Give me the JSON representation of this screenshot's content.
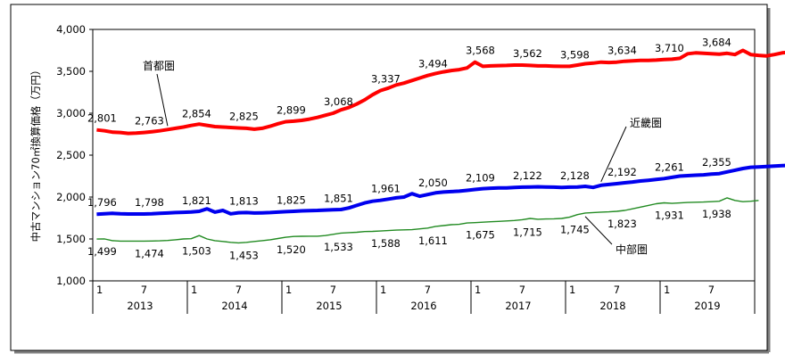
{
  "chart_data": {
    "type": "line",
    "ylabel": "中古マンション70㎡換算価格（万円）",
    "ylim": [
      1000,
      4000
    ],
    "yticks": [
      "1,000",
      "1,500",
      "2,000",
      "2,500",
      "3,000",
      "3,500",
      "4,000"
    ],
    "ytick_values": [
      1000,
      1500,
      2000,
      2500,
      3000,
      3500,
      4000
    ],
    "month_labels": [
      "1",
      "7"
    ],
    "years": [
      "2013",
      "2014",
      "2015",
      "2016",
      "2017",
      "2018",
      "2019"
    ],
    "grid": false,
    "series": [
      {
        "name": "首都圏",
        "color": "#ff0000",
        "values": [
          2801,
          2790,
          2775,
          2770,
          2760,
          2763,
          2770,
          2780,
          2790,
          2805,
          2820,
          2835,
          2854,
          2870,
          2855,
          2840,
          2835,
          2830,
          2825,
          2820,
          2810,
          2820,
          2845,
          2875,
          2899,
          2905,
          2915,
          2930,
          2950,
          2975,
          3000,
          3040,
          3068,
          3110,
          3160,
          3220,
          3270,
          3300,
          3337,
          3360,
          3390,
          3420,
          3450,
          3475,
          3494,
          3510,
          3520,
          3540,
          3610,
          3560,
          3565,
          3568,
          3570,
          3575,
          3575,
          3570,
          3565,
          3565,
          3562,
          3560,
          3560,
          3575,
          3590,
          3598,
          3610,
          3605,
          3610,
          3620,
          3625,
          3630,
          3630,
          3634,
          3640,
          3645,
          3655,
          3710,
          3720,
          3715,
          3710,
          3705,
          3715,
          3700,
          3750,
          3700,
          3690,
          3684,
          3700,
          3720,
          3730,
          3720,
          3705,
          3720,
          3750
        ],
        "labels": [
          "2,801",
          "2,763",
          "2,854",
          "2,825",
          "2,899",
          "3,068",
          "3,337",
          "3,494",
          "3,568",
          "3,562",
          "3,598",
          "3,634",
          "3,710",
          "3,684"
        ]
      },
      {
        "name": "近畿圏",
        "color": "#0000ee",
        "values": [
          1796,
          1800,
          1805,
          1800,
          1798,
          1798,
          1798,
          1800,
          1805,
          1810,
          1815,
          1818,
          1821,
          1830,
          1860,
          1820,
          1840,
          1800,
          1813,
          1815,
          1810,
          1812,
          1815,
          1820,
          1825,
          1830,
          1835,
          1838,
          1840,
          1845,
          1848,
          1851,
          1870,
          1900,
          1930,
          1950,
          1961,
          1975,
          1990,
          2000,
          2040,
          2010,
          2030,
          2050,
          2060,
          2065,
          2070,
          2080,
          2090,
          2100,
          2105,
          2109,
          2110,
          2115,
          2118,
          2120,
          2122,
          2120,
          2118,
          2115,
          2118,
          2120,
          2128,
          2115,
          2140,
          2150,
          2160,
          2170,
          2180,
          2192,
          2200,
          2210,
          2220,
          2235,
          2250,
          2255,
          2261,
          2265,
          2275,
          2280,
          2300,
          2320,
          2340,
          2355,
          2360,
          2365,
          2370,
          2375,
          2380,
          2390,
          2400
        ],
        "labels": [
          "1,796",
          "1,798",
          "1,821",
          "1,813",
          "1,825",
          "1,851",
          "1,961",
          "2,050",
          "2,109",
          "2,122",
          "2,128",
          "2,192",
          "2,261",
          "2,355"
        ]
      },
      {
        "name": "中部圏",
        "color": "#228b22",
        "values": [
          1499,
          1500,
          1480,
          1475,
          1474,
          1474,
          1474,
          1476,
          1478,
          1482,
          1490,
          1500,
          1503,
          1540,
          1500,
          1480,
          1470,
          1460,
          1453,
          1460,
          1470,
          1480,
          1490,
          1505,
          1520,
          1530,
          1532,
          1533,
          1533,
          1540,
          1555,
          1570,
          1575,
          1580,
          1588,
          1590,
          1595,
          1600,
          1605,
          1608,
          1611,
          1620,
          1630,
          1650,
          1660,
          1670,
          1675,
          1690,
          1695,
          1700,
          1705,
          1710,
          1715,
          1720,
          1730,
          1745,
          1735,
          1738,
          1740,
          1745,
          1760,
          1790,
          1810,
          1815,
          1820,
          1823,
          1830,
          1840,
          1860,
          1880,
          1900,
          1920,
          1931,
          1925,
          1930,
          1935,
          1938,
          1940,
          1945,
          1950,
          1990,
          1960,
          1945,
          1950,
          1960
        ],
        "labels": [
          "1,499",
          "1,474",
          "1,503",
          "1,453",
          "1,520",
          "1,533",
          "1,588",
          "1,611",
          "1,675",
          "1,715",
          "1,745",
          "1,823",
          "1,931",
          "1,938"
        ]
      }
    ]
  }
}
